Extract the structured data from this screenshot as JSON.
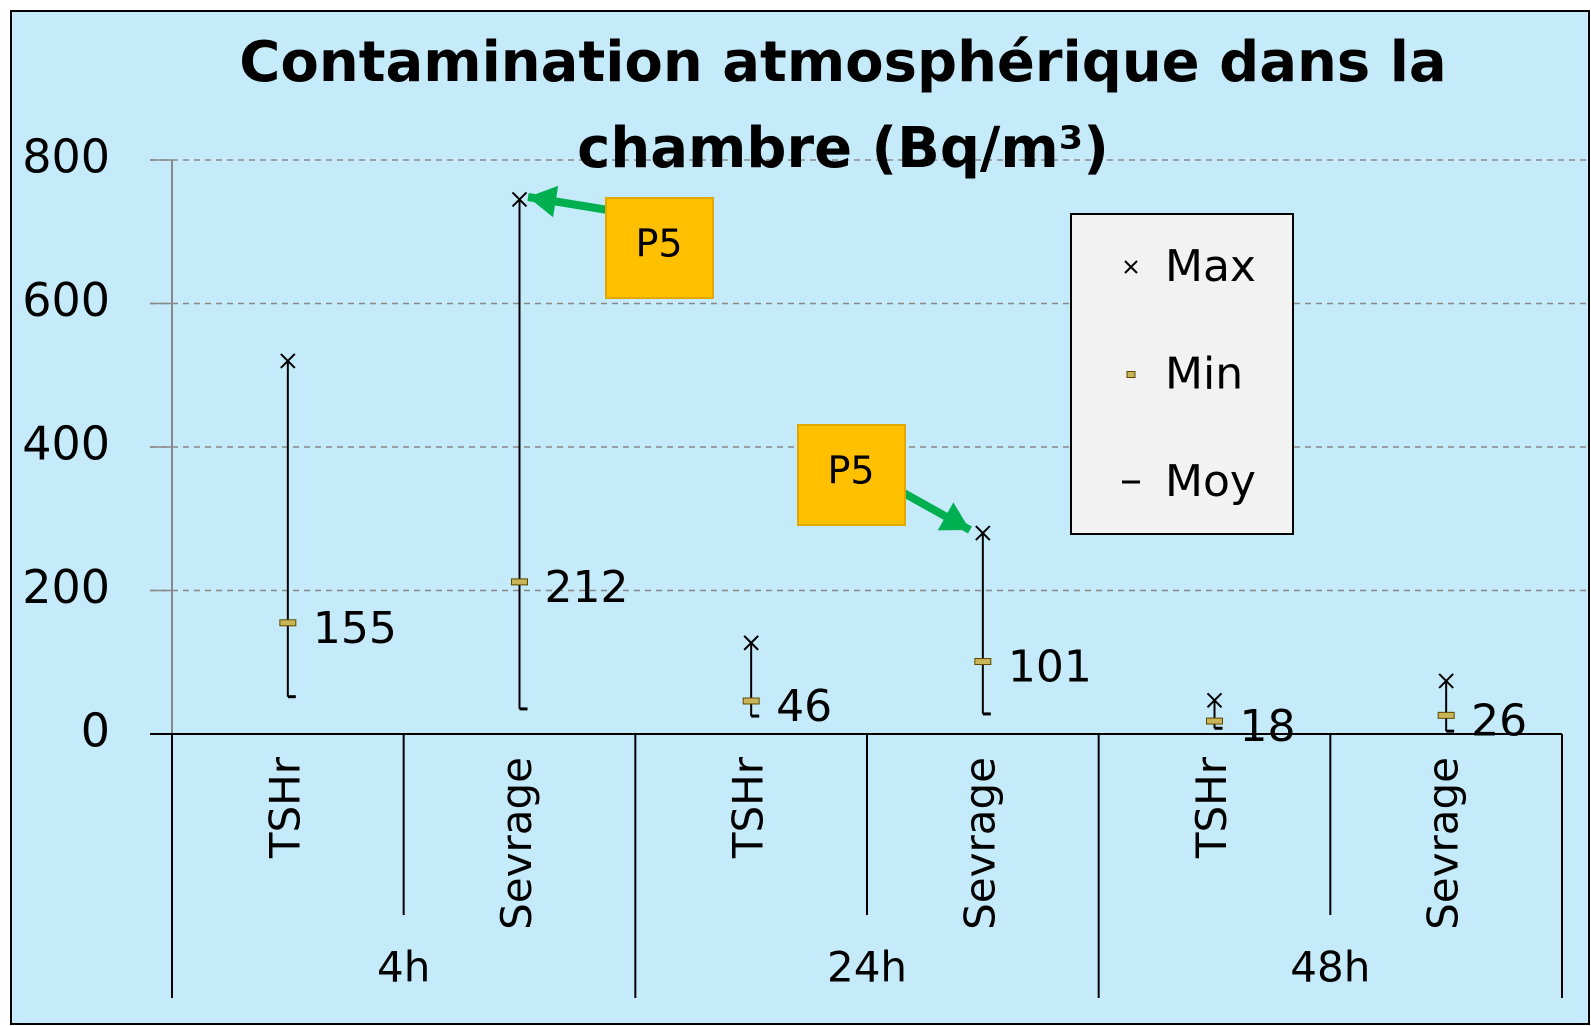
{
  "chart_data": {
    "type": "hilo",
    "title": "Contamination atmosphérique dans la chambre (Bq/m³)",
    "categories": [
      "TSHr",
      "Sevrage",
      "TSHr",
      "Sevrage",
      "TSHr",
      "Sevrage"
    ],
    "groups": [
      "4h",
      "24h",
      "48h"
    ],
    "series": [
      {
        "name": "Max",
        "color": "#000000",
        "values": [
          520,
          745,
          127,
          280,
          47,
          74
        ]
      },
      {
        "name": "Min",
        "color": "#000000",
        "values": [
          52,
          35,
          25,
          28,
          8,
          4
        ]
      },
      {
        "name": "Moy",
        "color": "#c9b458",
        "values": [
          155,
          212,
          46,
          101,
          18,
          26
        ]
      }
    ],
    "annotations": [
      {
        "text": "P5"
      },
      {
        "text": "P5"
      }
    ],
    "ylim": [
      0,
      800
    ],
    "yticks": [
      0,
      200,
      400,
      600,
      800
    ],
    "grid": true,
    "legend": "upper right"
  }
}
